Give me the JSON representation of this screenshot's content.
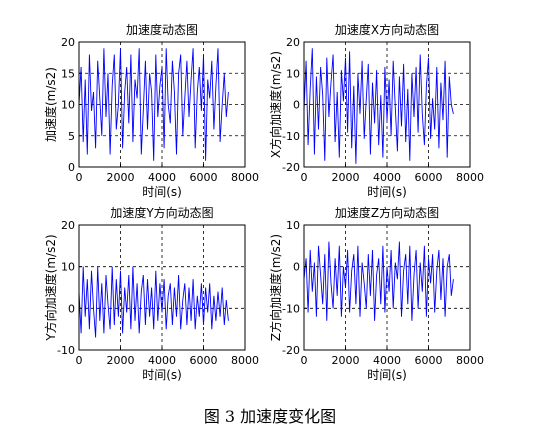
{
  "caption": "图 3  加速度变化图",
  "chart_data": [
    {
      "type": "line",
      "title": "加速度动态图",
      "xlabel": "时间(s)",
      "ylabel": "加速度(m/s2)",
      "xlim": [
        0,
        8000
      ],
      "ylim": [
        0,
        20
      ],
      "xticks": [
        0,
        2000,
        4000,
        6000,
        8000
      ],
      "yticks": [
        0,
        5,
        10,
        15,
        20
      ],
      "grid": true,
      "line_color": "#0000ff",
      "series": [
        {
          "x": [
            0,
            100,
            200,
            300,
            400,
            500,
            600,
            700,
            800,
            900,
            1000,
            1100,
            1200,
            1300,
            1400,
            1500,
            1600,
            1700,
            1800,
            1900,
            2000,
            2100,
            2200,
            2300,
            2400,
            2500,
            2600,
            2700,
            2800,
            2900,
            3000,
            3100,
            3200,
            3300,
            3400,
            3500,
            3600,
            3700,
            3800,
            3900,
            4000,
            4100,
            4200,
            4300,
            4400,
            4500,
            4600,
            4700,
            4800,
            4900,
            5000,
            5100,
            5200,
            5300,
            5400,
            5500,
            5600,
            5700,
            5800,
            5900,
            6000,
            6100,
            6200,
            6300,
            6400,
            6500,
            6600,
            6700,
            6800,
            6900,
            7000,
            7100,
            7200
          ],
          "y": [
            10,
            16,
            4,
            14,
            2,
            18,
            9,
            12,
            3,
            17,
            11,
            5,
            19,
            8,
            15,
            2,
            13,
            18,
            6,
            10,
            19,
            3,
            12,
            16,
            7,
            18,
            4,
            14,
            11,
            19,
            2,
            9,
            17,
            6,
            15,
            12,
            1,
            18,
            8,
            13,
            16,
            3,
            19,
            10,
            7,
            17,
            12,
            2,
            15,
            18,
            5,
            11,
            17,
            8,
            14,
            19,
            3,
            12,
            16,
            9,
            18,
            1,
            14,
            11,
            17,
            6,
            13,
            19,
            4,
            10,
            15,
            8,
            12
          ]
        }
      ]
    },
    {
      "type": "line",
      "title": "加速度X方向动态图",
      "xlabel": "时间(s)",
      "ylabel": "X方向加速度(m/s2)",
      "xlim": [
        0,
        8000
      ],
      "ylim": [
        -20,
        20
      ],
      "xticks": [
        0,
        2000,
        4000,
        6000,
        8000
      ],
      "yticks": [
        -20,
        -10,
        0,
        10,
        20
      ],
      "grid": true,
      "line_color": "#0000ff",
      "series": [
        {
          "x": [
            0,
            100,
            200,
            300,
            400,
            500,
            600,
            700,
            800,
            900,
            1000,
            1100,
            1200,
            1300,
            1400,
            1500,
            1600,
            1700,
            1800,
            1900,
            2000,
            2100,
            2200,
            2300,
            2400,
            2500,
            2600,
            2700,
            2800,
            2900,
            3000,
            3100,
            3200,
            3300,
            3400,
            3500,
            3600,
            3700,
            3800,
            3900,
            4000,
            4100,
            4200,
            4300,
            4400,
            4500,
            4600,
            4700,
            4800,
            4900,
            5000,
            5100,
            5200,
            5300,
            5400,
            5500,
            5600,
            5700,
            5800,
            5900,
            6000,
            6100,
            6200,
            6300,
            6400,
            6500,
            6600,
            6700,
            6800,
            6900,
            7000,
            7100,
            7200
          ],
          "y": [
            -2,
            14,
            -13,
            5,
            18,
            -16,
            9,
            -8,
            12,
            3,
            -18,
            15,
            -4,
            7,
            16,
            -12,
            4,
            -17,
            11,
            1,
            15,
            -9,
            17,
            -14,
            6,
            -19,
            10,
            -3,
            14,
            -11,
            2,
            13,
            -16,
            7,
            -6,
            11,
            -13,
            3,
            -17,
            12,
            -5,
            8,
            -10,
            14,
            -1,
            -15,
            9,
            -7,
            13,
            -12,
            5,
            -18,
            10,
            -4,
            12,
            -9,
            16,
            -3,
            -13,
            6,
            15,
            -11,
            2,
            -8,
            12,
            -14,
            7,
            -5,
            14,
            -17,
            9,
            0,
            -3
          ]
        }
      ]
    },
    {
      "type": "line",
      "title": "加速度Y方向动态图",
      "xlabel": "时间(s)",
      "ylabel": "Y方向加速度(m/s2)",
      "xlim": [
        0,
        8000
      ],
      "ylim": [
        -10,
        20
      ],
      "xticks": [
        0,
        2000,
        4000,
        6000,
        8000
      ],
      "yticks": [
        -10,
        0,
        10,
        20
      ],
      "grid": true,
      "line_color": "#0000ff",
      "series": [
        {
          "x": [
            0,
            100,
            200,
            300,
            400,
            500,
            600,
            700,
            800,
            900,
            1000,
            1100,
            1200,
            1300,
            1400,
            1500,
            1600,
            1700,
            1800,
            1900,
            2000,
            2100,
            2200,
            2300,
            2400,
            2500,
            2600,
            2700,
            2800,
            2900,
            3000,
            3100,
            3200,
            3300,
            3400,
            3500,
            3600,
            3700,
            3800,
            3900,
            4000,
            4100,
            4200,
            4300,
            4400,
            4500,
            4600,
            4700,
            4800,
            4900,
            5000,
            5100,
            5200,
            5300,
            5400,
            5500,
            5600,
            5700,
            5800,
            5900,
            6000,
            6100,
            6200,
            6300,
            6400,
            6500,
            6600,
            6700,
            6800,
            6900,
            7000,
            7100,
            7200
          ],
          "y": [
            4,
            -6,
            10,
            -2,
            7,
            -5,
            9,
            0,
            -7,
            10,
            -3,
            6,
            -6,
            8,
            1,
            -5,
            10,
            -4,
            7,
            -2,
            9,
            -6,
            5,
            -1,
            8,
            -5,
            10,
            -3,
            6,
            -6,
            4,
            8,
            -4,
            7,
            -2,
            5,
            -5,
            9,
            -3,
            6,
            -1,
            7,
            -5,
            3,
            6,
            -4,
            5,
            -2,
            8,
            -5,
            2,
            6,
            -4,
            5,
            -3,
            7,
            -5,
            3,
            -2,
            6,
            -4,
            5,
            -1,
            6,
            -5,
            3,
            -3,
            4,
            -2,
            5,
            -4,
            2,
            -3
          ]
        }
      ]
    },
    {
      "type": "line",
      "title": "加速度Z方向动态图",
      "xlabel": "时间(s)",
      "ylabel": "Z方向加速度(m/s2)",
      "xlim": [
        0,
        8000
      ],
      "ylim": [
        -20,
        10
      ],
      "xticks": [
        0,
        2000,
        4000,
        6000,
        8000
      ],
      "yticks": [
        -20,
        -10,
        0,
        10
      ],
      "grid": true,
      "line_color": "#0000ff",
      "series": [
        {
          "x": [
            0,
            100,
            200,
            300,
            400,
            500,
            600,
            700,
            800,
            900,
            1000,
            1100,
            1200,
            1300,
            1400,
            1500,
            1600,
            1700,
            1800,
            1900,
            2000,
            2100,
            2200,
            2300,
            2400,
            2500,
            2600,
            2700,
            2800,
            2900,
            3000,
            3100,
            3200,
            3300,
            3400,
            3500,
            3600,
            3700,
            3800,
            3900,
            4000,
            4100,
            4200,
            4300,
            4400,
            4500,
            4600,
            4700,
            4800,
            4900,
            5000,
            5100,
            5200,
            5300,
            5400,
            5500,
            5600,
            5700,
            5800,
            5900,
            6000,
            6100,
            6200,
            6300,
            6400,
            6500,
            6600,
            6700,
            6800,
            6900,
            7000,
            7100,
            7200
          ],
          "y": [
            -3,
            2,
            -11,
            4,
            -6,
            1,
            -12,
            5,
            -2,
            -9,
            3,
            -13,
            6,
            -4,
            -10,
            2,
            -7,
            5,
            -12,
            0,
            -5,
            4,
            -11,
            -1,
            3,
            -9,
            5,
            -12,
            1,
            -4,
            -10,
            3,
            -7,
            4,
            -13,
            -2,
            2,
            -9,
            5,
            -11,
            0,
            -6,
            4,
            -10,
            1,
            -3,
            6,
            -12,
            -1,
            3,
            -9,
            5,
            -13,
            -2,
            4,
            -10,
            1,
            -6,
            5,
            -12,
            2,
            -4,
            3,
            -11,
            -1,
            4,
            -8,
            2,
            -12,
            0,
            3,
            -7,
            -3
          ]
        }
      ]
    }
  ]
}
